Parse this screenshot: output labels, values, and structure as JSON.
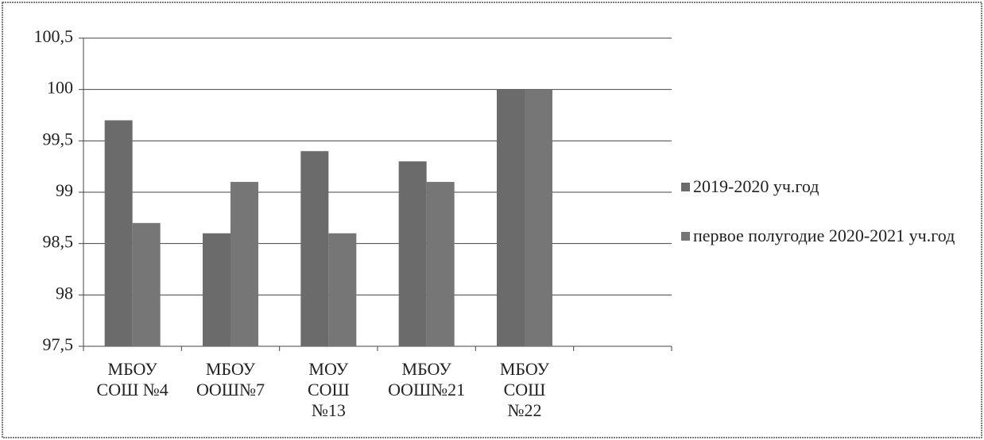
{
  "chart_data": {
    "type": "bar",
    "categories": [
      "МБОУ СОШ №4",
      "МБОУ ООШ№7",
      "МОУ СОШ №13",
      "МБОУ ООШ№21",
      "МБОУ СОШ №22",
      null
    ],
    "series": [
      {
        "name": "2019-2020 уч.год",
        "color": "#6b6b6b",
        "values": [
          99.7,
          98.6,
          99.4,
          99.3,
          100,
          null
        ]
      },
      {
        "name": "первое полугодие 2020-2021 уч.год",
        "color": "#767676",
        "values": [
          98.7,
          99.1,
          98.6,
          99.1,
          100,
          null
        ]
      }
    ],
    "ylim": [
      97.5,
      100.5
    ],
    "yticks": [
      {
        "value": 97.5,
        "label": "97,5"
      },
      98,
      {
        "value": 98.5,
        "label": "98,5"
      },
      99,
      {
        "value": 99.5,
        "label": "99,5"
      },
      100,
      {
        "value": 100.5,
        "label": "100,5"
      }
    ],
    "grid": true,
    "legend": "right"
  }
}
